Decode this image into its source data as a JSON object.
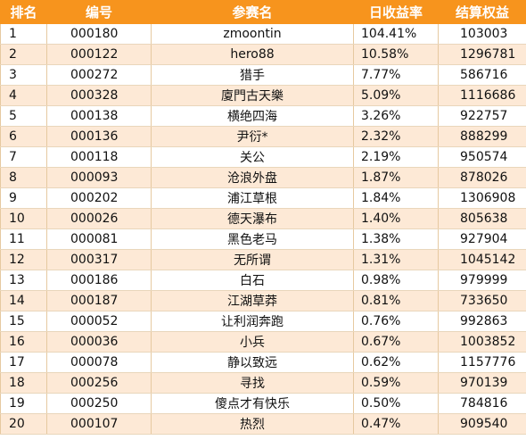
{
  "headers": {
    "rank": "排名",
    "code": "编号",
    "name": "参赛名",
    "rate": "日收益率",
    "equity": "结算权益"
  },
  "rows": [
    {
      "rank": "1",
      "code": "000180",
      "name": "zmoontin",
      "rate": "104.41%",
      "equity": "103003"
    },
    {
      "rank": "2",
      "code": "000122",
      "name": "hero88",
      "rate": "10.58%",
      "equity": "1296781"
    },
    {
      "rank": "3",
      "code": "000272",
      "name": "猎手",
      "rate": "7.77%",
      "equity": "586716"
    },
    {
      "rank": "4",
      "code": "000328",
      "name": "廈門古天樂",
      "rate": "5.09%",
      "equity": "1116686"
    },
    {
      "rank": "5",
      "code": "000138",
      "name": "横绝四海",
      "rate": "3.26%",
      "equity": "922757"
    },
    {
      "rank": "6",
      "code": "000136",
      "name": "尹衍*",
      "rate": "2.32%",
      "equity": "888299"
    },
    {
      "rank": "7",
      "code": "000118",
      "name": "关公",
      "rate": "2.19%",
      "equity": "950574"
    },
    {
      "rank": "8",
      "code": "000093",
      "name": "沧浪外盘",
      "rate": "1.87%",
      "equity": "878026"
    },
    {
      "rank": "9",
      "code": "000202",
      "name": "浦江草根",
      "rate": "1.84%",
      "equity": "1306908"
    },
    {
      "rank": "10",
      "code": "000026",
      "name": "德天瀑布",
      "rate": "1.40%",
      "equity": "805638"
    },
    {
      "rank": "11",
      "code": "000081",
      "name": "黑色老马",
      "rate": "1.38%",
      "equity": "927904"
    },
    {
      "rank": "12",
      "code": "000317",
      "name": "无所谓",
      "rate": "1.31%",
      "equity": "1045142"
    },
    {
      "rank": "13",
      "code": "000186",
      "name": "白石",
      "rate": "0.98%",
      "equity": "979999"
    },
    {
      "rank": "14",
      "code": "000187",
      "name": "江湖草莽",
      "rate": "0.81%",
      "equity": "733650"
    },
    {
      "rank": "15",
      "code": "000052",
      "name": "让利润奔跑",
      "rate": "0.76%",
      "equity": "992863"
    },
    {
      "rank": "16",
      "code": "000036",
      "name": "小兵",
      "rate": "0.67%",
      "equity": "1003852"
    },
    {
      "rank": "17",
      "code": "000078",
      "name": "静以致远",
      "rate": "0.62%",
      "equity": "1157776"
    },
    {
      "rank": "18",
      "code": "000256",
      "name": "寻找",
      "rate": "0.59%",
      "equity": "970139"
    },
    {
      "rank": "19",
      "code": "000250",
      "name": "傻点才有快乐",
      "rate": "0.50%",
      "equity": "784816"
    },
    {
      "rank": "20",
      "code": "000107",
      "name": "热烈",
      "rate": "0.47%",
      "equity": "909540"
    }
  ],
  "colors": {
    "header_bg": "#f7941d",
    "header_text": "#ffffff",
    "row_odd": "#ffffff",
    "row_even": "#fde9d6"
  }
}
